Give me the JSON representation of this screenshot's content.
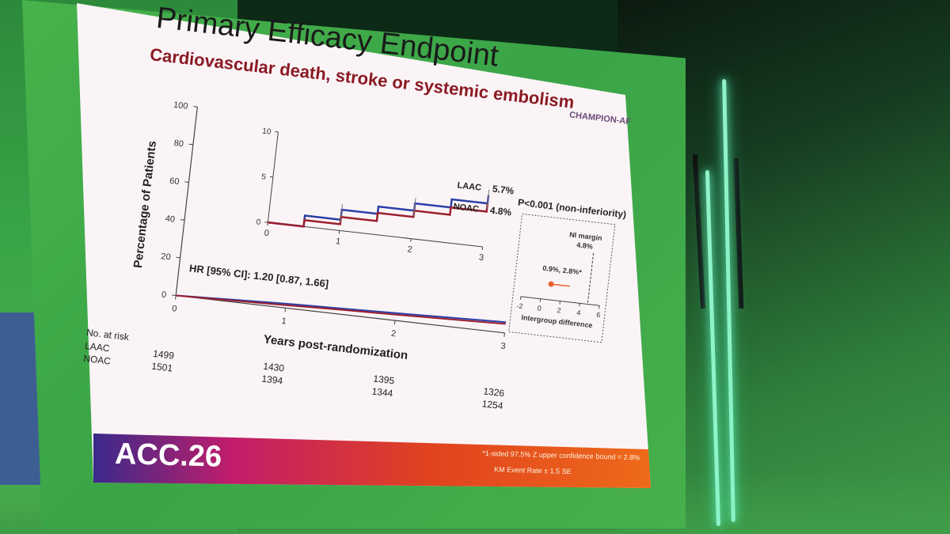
{
  "slide": {
    "title": "Primary Efficacy Endpoint",
    "subtitle": "Cardiovascular death, stroke or systemic embolism",
    "logo": "CHAMPION-AF",
    "conference": "ACC.26",
    "footnote1": "*1-sided 97.5% Z upper confidence bound = 2.8%",
    "footnote2": "KM Event Rate ± 1.5 SE"
  },
  "colors": {
    "laac": "#2b3fa8",
    "noac": "#9b1f2e",
    "title": "#1a1a1a",
    "subtitle": "#8a1a24",
    "diamond": "#e8622a"
  },
  "chart_data": [
    {
      "type": "line",
      "ylabel": "Percentage of Patients",
      "xlabel": "Years post-randomization",
      "xlim": [
        0,
        3
      ],
      "ylim": [
        0,
        100
      ],
      "x_ticks": [
        "0",
        "1",
        "2",
        "3"
      ],
      "y_ticks": [
        "0",
        "20",
        "40",
        "60",
        "80",
        "100"
      ],
      "annotation": "HR [95% CI]: 1.20 [0.87, 1.66]",
      "series": [
        {
          "name": "LAAC",
          "x": [
            0,
            0.5,
            1,
            1.5,
            2,
            2.5,
            3
          ],
          "y": [
            0,
            1.2,
            2.3,
            3.1,
            3.9,
            4.8,
            5.7
          ]
        },
        {
          "name": "NOAC",
          "x": [
            0,
            0.5,
            1,
            1.5,
            2,
            2.5,
            3
          ],
          "y": [
            0,
            0.7,
            1.5,
            2.4,
            3.1,
            3.9,
            4.8
          ]
        }
      ],
      "risk_table": {
        "title": "No. at risk",
        "rows": [
          {
            "label": "LAAC",
            "values": [
              "1499",
              "1430",
              "1395",
              "1326"
            ]
          },
          {
            "label": "NOAC",
            "values": [
              "1501",
              "1394",
              "1344",
              "1254"
            ]
          }
        ]
      }
    },
    {
      "type": "line",
      "xlim": [
        0,
        3
      ],
      "ylim": [
        0,
        10
      ],
      "x_ticks": [
        "0",
        "1",
        "2",
        "3"
      ],
      "y_ticks": [
        "0",
        "5",
        "10"
      ],
      "end_labels": [
        {
          "series": "LAAC",
          "value": "5.7%"
        },
        {
          "series": "NOAC",
          "value": "4.8%"
        }
      ]
    },
    {
      "type": "scatter",
      "title": "P<0.001 (non-inferiority)",
      "xlabel": "Intergroup difference",
      "xlim": [
        -2,
        6
      ],
      "x_ticks": [
        "-2",
        "0",
        "2",
        "4",
        "6"
      ],
      "ni_margin_label": "NI margin",
      "ni_margin_value_label": "4.8%",
      "ni_margin": 4.8,
      "point_estimate": 0.9,
      "upper_bound": 2.8,
      "estimate_label": "0.9%, 2.8%*"
    }
  ]
}
